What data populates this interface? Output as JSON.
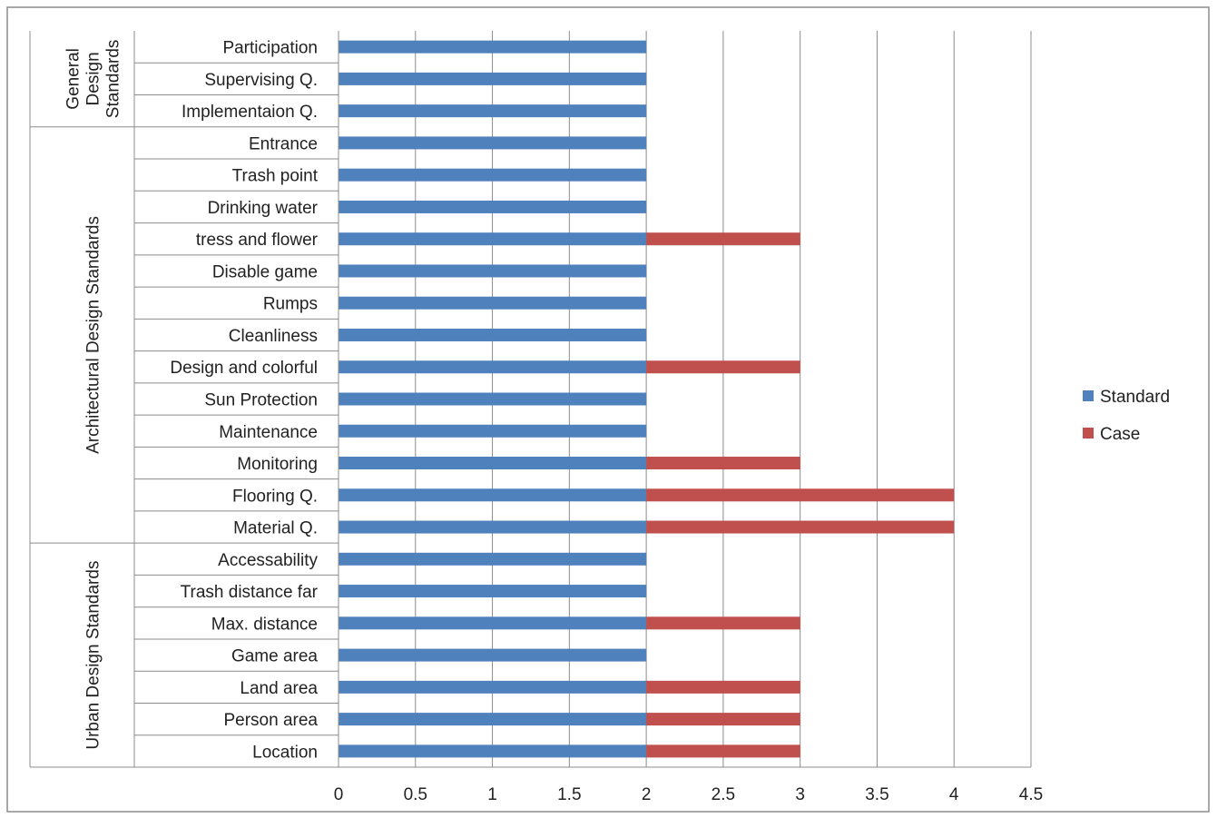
{
  "chart_data": {
    "type": "bar",
    "orientation": "horizontal",
    "stacked": true,
    "categories": [
      "Participation",
      "Supervising Q.",
      "Implementaion Q.",
      "Entrance",
      "Trash point",
      "Drinking water",
      "tress and flower",
      "Disable game",
      "Rumps",
      "Cleanliness",
      "Design and colorful",
      "Sun Protection",
      "Maintenance",
      "Monitoring",
      "Flooring Q.",
      "Material Q.",
      "Accessability",
      "Trash distance far",
      "Max. distance",
      "Game area",
      "Land area",
      "Person area",
      "Location"
    ],
    "groups": [
      {
        "label": "General Design Standards",
        "lines": [
          "General",
          "Design",
          "Standards"
        ],
        "start": 0,
        "end": 2
      },
      {
        "label": "Architectural Design Standards",
        "lines": [
          "Architectural Design Standards"
        ],
        "start": 3,
        "end": 15
      },
      {
        "label": "Urban Design Standards",
        "lines": [
          "Urban Design Standards"
        ],
        "start": 16,
        "end": 22
      }
    ],
    "series": [
      {
        "name": "Standard",
        "color": "#4f81bd",
        "values": [
          2,
          2,
          2,
          2,
          2,
          2,
          2,
          2,
          2,
          2,
          2,
          2,
          2,
          2,
          2,
          2,
          2,
          2,
          2,
          2,
          2,
          2,
          2
        ]
      },
      {
        "name": "Case",
        "color": "#c0504d",
        "values": [
          0,
          0,
          0,
          0,
          0,
          0,
          1,
          0,
          0,
          0,
          1,
          0,
          0,
          1,
          2,
          2,
          0,
          0,
          1,
          0,
          1,
          1,
          1
        ]
      }
    ],
    "xlim": [
      0,
      4.5
    ],
    "xticks": [
      "0",
      "0.5",
      "1",
      "1.5",
      "2",
      "2.5",
      "3",
      "3.5",
      "4",
      "4.5"
    ],
    "gridlines": "vertical",
    "legend_position": "right"
  }
}
